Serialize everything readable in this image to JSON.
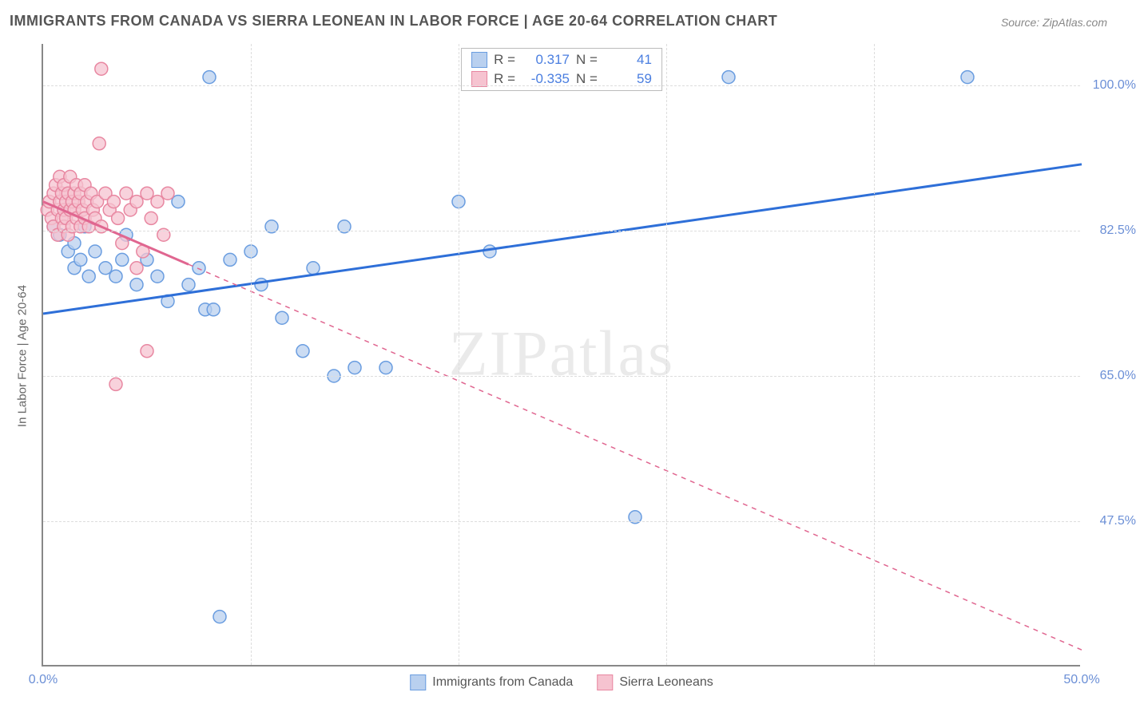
{
  "title": "IMMIGRANTS FROM CANADA VS SIERRA LEONEAN IN LABOR FORCE | AGE 20-64 CORRELATION CHART",
  "source": "Source: ZipAtlas.com",
  "watermark": "ZIPatlas",
  "y_axis_label": "In Labor Force | Age 20-64",
  "chart": {
    "type": "scatter",
    "xlim": [
      0,
      50
    ],
    "ylim": [
      30,
      105
    ],
    "x_ticks": [
      0,
      10,
      20,
      30,
      40,
      50
    ],
    "x_tick_labels": [
      "0.0%",
      "",
      "",
      "",
      "",
      "50.0%"
    ],
    "y_ticks": [
      47.5,
      65.0,
      82.5,
      100.0
    ],
    "y_tick_labels": [
      "47.5%",
      "65.0%",
      "82.5%",
      "100.0%"
    ],
    "grid_color": "#dddddd",
    "axis_color": "#888888",
    "background": "#ffffff",
    "marker_radius": 8,
    "marker_stroke_width": 1.5,
    "series": [
      {
        "name": "Immigrants from Canada",
        "fill": "#b9d0ef",
        "stroke": "#6a9de0",
        "opacity": 0.75,
        "r_value": "0.317",
        "n_value": "41",
        "trend": {
          "x1": 0,
          "y1": 72.5,
          "x2": 50,
          "y2": 90.5,
          "solid_xmax": 50,
          "stroke": "#2e6fd8",
          "width": 3
        },
        "points": [
          [
            0.5,
            83
          ],
          [
            0.8,
            82
          ],
          [
            1.0,
            85
          ],
          [
            1.2,
            80
          ],
          [
            1.5,
            78
          ],
          [
            1.5,
            81
          ],
          [
            1.8,
            79
          ],
          [
            2.0,
            83
          ],
          [
            2.2,
            77
          ],
          [
            2.5,
            80
          ],
          [
            3.0,
            78
          ],
          [
            3.5,
            77
          ],
          [
            3.8,
            79
          ],
          [
            4.0,
            82
          ],
          [
            4.5,
            76
          ],
          [
            5.0,
            79
          ],
          [
            5.5,
            77
          ],
          [
            6.0,
            74
          ],
          [
            6.5,
            86
          ],
          [
            7.0,
            76
          ],
          [
            7.5,
            78
          ],
          [
            7.8,
            73
          ],
          [
            8.0,
            101
          ],
          [
            8.2,
            73
          ],
          [
            9.0,
            79
          ],
          [
            10.0,
            80
          ],
          [
            10.5,
            76
          ],
          [
            11.0,
            83
          ],
          [
            11.5,
            72
          ],
          [
            12.5,
            68
          ],
          [
            13.0,
            78
          ],
          [
            14.0,
            65
          ],
          [
            14.5,
            83
          ],
          [
            15.0,
            66
          ],
          [
            16.5,
            66
          ],
          [
            20.0,
            86
          ],
          [
            21.5,
            80
          ],
          [
            8.5,
            36
          ],
          [
            28.5,
            48
          ],
          [
            33.0,
            101
          ],
          [
            44.5,
            101
          ]
        ]
      },
      {
        "name": "Sierra Leoneans",
        "fill": "#f6c3d0",
        "stroke": "#e887a1",
        "opacity": 0.75,
        "r_value": "-0.335",
        "n_value": "59",
        "trend": {
          "x1": 0,
          "y1": 86,
          "x2": 50,
          "y2": 32,
          "solid_xmax": 7,
          "stroke": "#e06690",
          "width": 3
        },
        "points": [
          [
            0.2,
            85
          ],
          [
            0.3,
            86
          ],
          [
            0.4,
            84
          ],
          [
            0.5,
            87
          ],
          [
            0.5,
            83
          ],
          [
            0.6,
            88
          ],
          [
            0.7,
            85
          ],
          [
            0.7,
            82
          ],
          [
            0.8,
            86
          ],
          [
            0.8,
            89
          ],
          [
            0.9,
            84
          ],
          [
            0.9,
            87
          ],
          [
            1.0,
            85
          ],
          [
            1.0,
            83
          ],
          [
            1.0,
            88
          ],
          [
            1.1,
            86
          ],
          [
            1.1,
            84
          ],
          [
            1.2,
            87
          ],
          [
            1.2,
            82
          ],
          [
            1.3,
            85
          ],
          [
            1.3,
            89
          ],
          [
            1.4,
            86
          ],
          [
            1.4,
            83
          ],
          [
            1.5,
            87
          ],
          [
            1.5,
            85
          ],
          [
            1.6,
            88
          ],
          [
            1.6,
            84
          ],
          [
            1.7,
            86
          ],
          [
            1.8,
            83
          ],
          [
            1.8,
            87
          ],
          [
            1.9,
            85
          ],
          [
            2.0,
            88
          ],
          [
            2.0,
            84
          ],
          [
            2.1,
            86
          ],
          [
            2.2,
            83
          ],
          [
            2.3,
            87
          ],
          [
            2.4,
            85
          ],
          [
            2.5,
            84
          ],
          [
            2.6,
            86
          ],
          [
            2.7,
            93
          ],
          [
            2.8,
            102
          ],
          [
            2.8,
            83
          ],
          [
            3.0,
            87
          ],
          [
            3.2,
            85
          ],
          [
            3.4,
            86
          ],
          [
            3.6,
            84
          ],
          [
            3.8,
            81
          ],
          [
            4.0,
            87
          ],
          [
            4.2,
            85
          ],
          [
            4.5,
            86
          ],
          [
            4.8,
            80
          ],
          [
            5.0,
            87
          ],
          [
            5.2,
            84
          ],
          [
            5.5,
            86
          ],
          [
            5.8,
            82
          ],
          [
            6.0,
            87
          ],
          [
            3.5,
            64
          ],
          [
            4.5,
            78
          ],
          [
            5.0,
            68
          ]
        ]
      }
    ]
  },
  "legend_bottom": [
    {
      "label": "Immigrants from Canada",
      "fill": "#b9d0ef",
      "stroke": "#6a9de0"
    },
    {
      "label": "Sierra Leoneans",
      "fill": "#f6c3d0",
      "stroke": "#e887a1"
    }
  ]
}
